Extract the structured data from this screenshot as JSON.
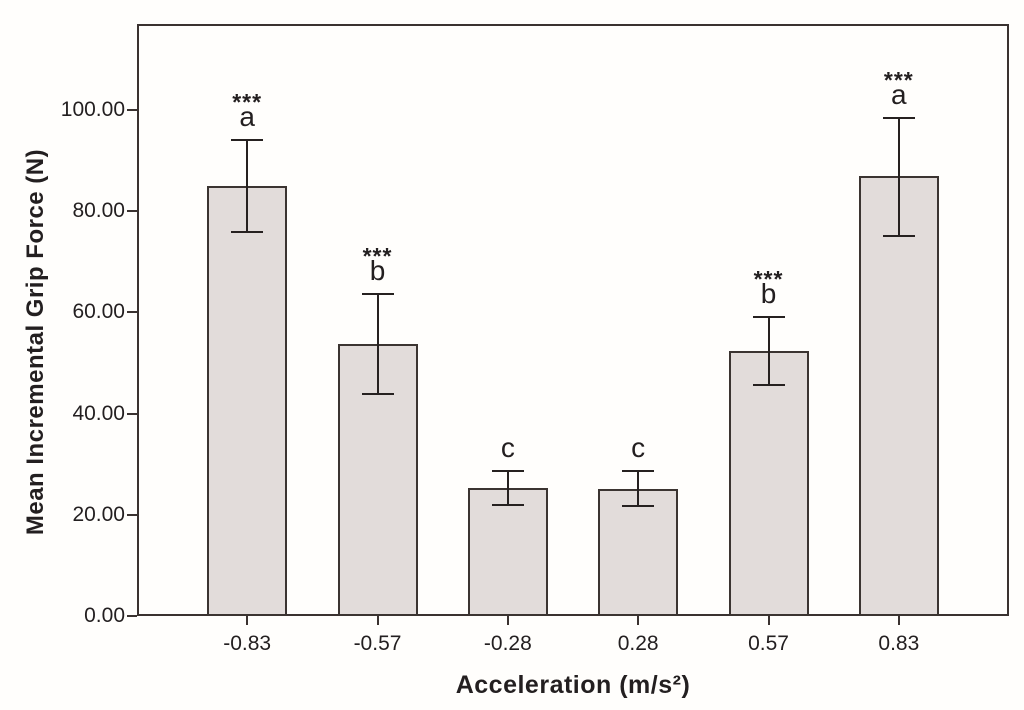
{
  "figure": {
    "background_color": "#fffefc"
  },
  "chart_data": {
    "type": "bar",
    "title": "",
    "xlabel": "Acceleration (m/s²)",
    "ylabel": "Mean Incremental Grip Force (N)",
    "categories": [
      "-0.83",
      "-0.57",
      "-0.28",
      "0.28",
      "0.57",
      "0.83"
    ],
    "values": [
      85.0,
      53.7,
      25.3,
      25.1,
      52.3,
      86.9
    ],
    "error_low": [
      75.9,
      43.8,
      22.0,
      21.8,
      45.6,
      75.2
    ],
    "error_high": [
      94.1,
      63.6,
      28.6,
      28.6,
      59.0,
      98.5
    ],
    "annotations": [
      {
        "stars": "***",
        "letter": "a"
      },
      {
        "stars": "***",
        "letter": "b"
      },
      {
        "stars": "",
        "letter": "c"
      },
      {
        "stars": "",
        "letter": "c"
      },
      {
        "stars": "***",
        "letter": "b"
      },
      {
        "stars": "***",
        "letter": "a"
      }
    ],
    "y_ticks": [
      {
        "value": 0,
        "label": "0.00"
      },
      {
        "value": 20,
        "label": "20.00"
      },
      {
        "value": 40,
        "label": "40.00"
      },
      {
        "value": 60,
        "label": "60.00"
      },
      {
        "value": 80,
        "label": "80.00"
      },
      {
        "value": 100,
        "label": "100.00"
      }
    ],
    "ylim": [
      0,
      117
    ],
    "grid": false,
    "legend": null,
    "colors": {
      "bar_fill": "#e2dcda",
      "bar_stroke": "#3b3431",
      "frame": "#3a3230",
      "error_bar": "#262120",
      "text": "#231f20"
    }
  }
}
